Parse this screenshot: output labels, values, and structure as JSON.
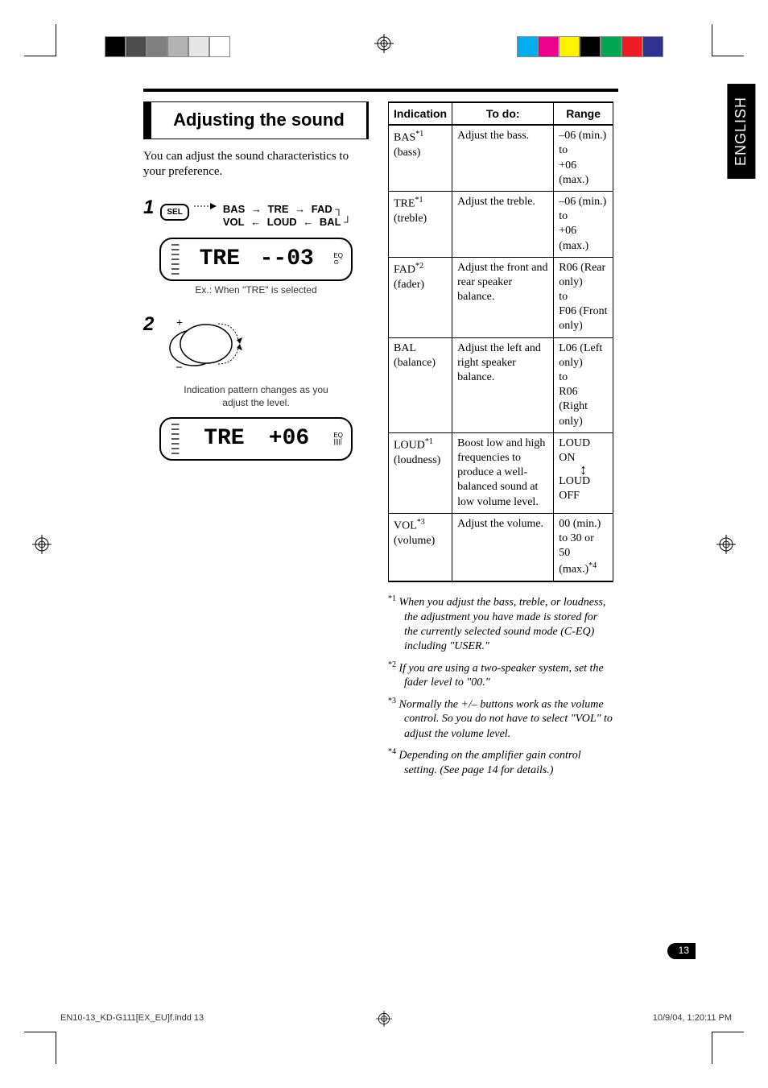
{
  "print_marks": {
    "color_swatches_gray": [
      "#000000",
      "#4d4d4d",
      "#808080",
      "#b3b3b3",
      "#e6e6e6",
      "#ffffff"
    ],
    "color_swatches_cmyk": [
      "#00aeef",
      "#ec008c",
      "#fff200",
      "#000000",
      "#00a651",
      "#ed1c24",
      "#2e3192"
    ]
  },
  "side_tab": "ENGLISH",
  "section_title": "Adjusting the sound",
  "intro": "You can adjust the sound characteristics to your preference.",
  "step1": {
    "num": "1",
    "sel_label": "SEL",
    "flow_top": [
      "BAS",
      "TRE",
      "FAD"
    ],
    "flow_bottom": [
      "VOL",
      "LOUD",
      "BAL"
    ]
  },
  "lcd1": {
    "main": "TRE",
    "val": "--03"
  },
  "caption1": "Ex.: When \"TRE\" is selected",
  "step2": {
    "num": "2"
  },
  "caption2": "Indication pattern changes as you adjust the level.",
  "lcd2": {
    "main": "TRE",
    "val": "+06"
  },
  "table": {
    "headers": [
      "Indication",
      "To do:",
      "Range"
    ],
    "rows": [
      {
        "ind_main": "BAS",
        "ind_sup": "*1",
        "ind_sub": "(bass)",
        "todo": "Adjust the bass.",
        "range": "–06 (min.)\nto\n+06 (max.)"
      },
      {
        "ind_main": "TRE",
        "ind_sup": "*1",
        "ind_sub": "(treble)",
        "todo": "Adjust the treble.",
        "range": "–06 (min.)\nto\n+06 (max.)"
      },
      {
        "ind_main": "FAD",
        "ind_sup": "*2",
        "ind_sub": "(fader)",
        "todo": "Adjust the front and rear speaker balance.",
        "range": "R06 (Rear only)\nto\nF06 (Front only)"
      },
      {
        "ind_main": "BAL",
        "ind_sup": "",
        "ind_sub": "(balance)",
        "todo": "Adjust the left and right speaker balance.",
        "range": "L06 (Left only)\nto\nR06 (Right only)"
      },
      {
        "ind_main": "LOUD",
        "ind_sup": "*1",
        "ind_sub": "(loudness)",
        "todo": "Boost low and high frequencies to produce a well-balanced sound at low volume level.",
        "range_top": "LOUD ON",
        "range_bottom": "LOUD OFF",
        "has_updown": true
      },
      {
        "ind_main": "VOL",
        "ind_sup": "*3",
        "ind_sub": "(volume)",
        "todo": "Adjust the volume.",
        "range": "00 (min.) to 30 or 50 (max.)*4"
      }
    ]
  },
  "footnotes": [
    {
      "mark": "*1",
      "text": "When you adjust the bass, treble, or loudness, the adjustment you have made is stored for the currently selected sound mode (C-EQ) including \"USER.\""
    },
    {
      "mark": "*2",
      "text": "If you are using a two-speaker system, set the fader level to \"00.\""
    },
    {
      "mark": "*3",
      "text": "Normally the +/– buttons work as the volume control. So you do not have to select \"VOL\" to adjust the volume level."
    },
    {
      "mark": "*4",
      "text": "Depending on the amplifier gain control setting. (See page 14 for details.)"
    }
  ],
  "page_number": "13",
  "footer": {
    "left": "EN10-13_KD-G111[EX_EU]f.indd   13",
    "right": "10/9/04, 1:20:11 PM"
  }
}
